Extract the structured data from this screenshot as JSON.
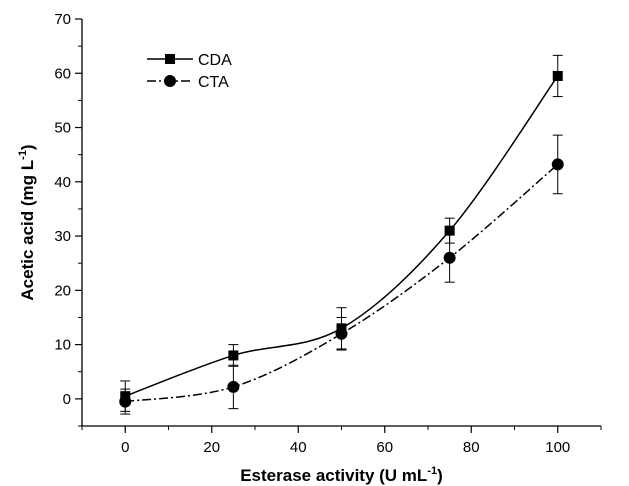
{
  "chart_data": {
    "type": "line",
    "title": "",
    "xlabel": "Esterase activity (U mL",
    "xlabel_sup": "-1",
    "xlabel_end": ")",
    "ylabel": "Acetic acid (mg L",
    "ylabel_sup": "-1",
    "ylabel_end": ")",
    "xlim": [
      -10,
      110
    ],
    "ylim": [
      -5,
      70
    ],
    "xticks": [
      "0",
      "20",
      "40",
      "60",
      "80",
      "100"
    ],
    "yticks": [
      "0",
      "10",
      "20",
      "30",
      "40",
      "50",
      "60",
      "70"
    ],
    "grid": false,
    "legend_position": "top-left",
    "x": [
      0,
      25,
      50,
      75,
      100
    ],
    "series": [
      {
        "name": "CDA",
        "marker": "square",
        "line_style": "solid",
        "color": "#000000",
        "values": [
          0.5,
          8.0,
          13.0,
          31.0,
          59.5
        ],
        "errors": [
          2.8,
          2.0,
          3.8,
          2.3,
          3.8
        ]
      },
      {
        "name": "CTA",
        "marker": "circle",
        "line_style": "dash-dot",
        "color": "#000000",
        "values": [
          -0.5,
          2.2,
          12.0,
          26.0,
          43.2
        ],
        "errors": [
          2.3,
          4.0,
          3.0,
          4.5,
          5.4
        ]
      }
    ]
  }
}
